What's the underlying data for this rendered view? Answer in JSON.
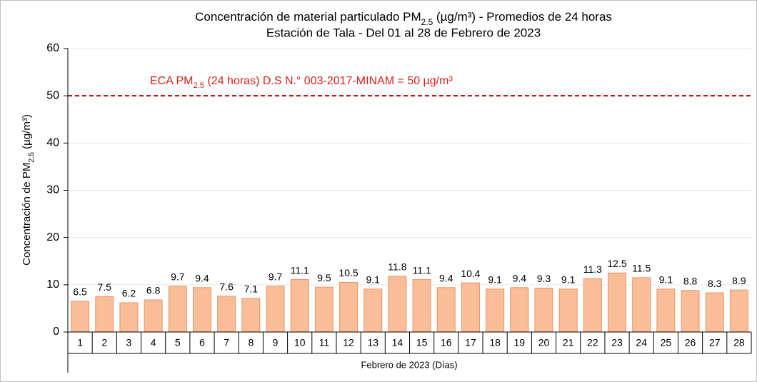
{
  "chart_data": {
    "type": "bar",
    "title": [
      "Concentración de material particulado PM",
      "2.5",
      " (µg/m³) - Promedios de  24 horas"
    ],
    "subtitle": "Estación de Tala - Del 01 al 28 de Febrero de 2023",
    "x_label": "Febrero de 2023 (Días)",
    "y_label": [
      "Concentración de PM",
      "2.5",
      " (µg/m³)"
    ],
    "categories": [
      "1",
      "2",
      "3",
      "4",
      "5",
      "6",
      "7",
      "8",
      "9",
      "10",
      "11",
      "12",
      "13",
      "14",
      "15",
      "16",
      "17",
      "18",
      "19",
      "20",
      "21",
      "22",
      "23",
      "24",
      "25",
      "26",
      "27",
      "28"
    ],
    "values": [
      6.5,
      7.5,
      6.2,
      6.8,
      9.7,
      9.4,
      7.6,
      7.1,
      9.7,
      11.1,
      9.5,
      10.5,
      9.1,
      11.8,
      11.1,
      9.4,
      10.4,
      9.1,
      9.4,
      9.3,
      9.1,
      11.3,
      12.5,
      11.5,
      9.1,
      8.8,
      8.3,
      8.9
    ],
    "color": "#f9bd97",
    "edge_color": "#e99566",
    "ylim": [
      0,
      60
    ],
    "yticks": [
      0,
      10,
      20,
      30,
      40,
      50,
      60
    ],
    "grid": true,
    "reference_line": {
      "value": 50,
      "color": "#c00000",
      "label": [
        "ECA PM",
        "2.5",
        " (24 horas) D.S N.° 003-2017-MINAM  = 50 µg/m³"
      ]
    }
  }
}
